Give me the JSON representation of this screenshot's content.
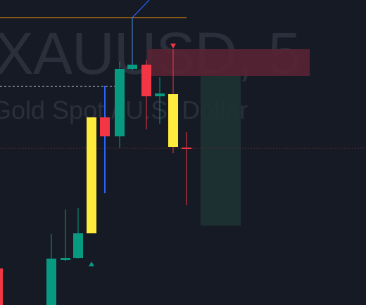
{
  "watermark": {
    "symbol": "XAUUSD, 5",
    "description": "Gold Spot / U.S. Dollar"
  },
  "colors": {
    "background": "#161a25",
    "bull": "#089981",
    "bear": "#f23645",
    "highlight": "#ffeb3b",
    "blue_line": "#2962ff",
    "orange_line": "#ff9800",
    "red_zone": "#5a2434",
    "green_zone": "#1d3333"
  },
  "annotations": {
    "buy_marker": "up-triangle",
    "sell_marker": "down-triangle"
  }
}
